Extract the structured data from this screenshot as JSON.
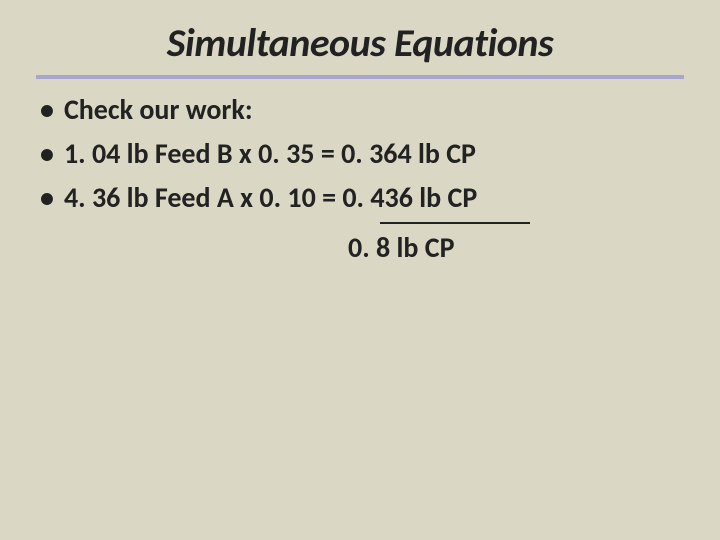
{
  "slide": {
    "title": "Simultaneous Equations",
    "bullets": [
      {
        "text": "Check our work:"
      },
      {
        "text": "1. 04 lb Feed B x 0. 35 = 0. 364 lb CP"
      },
      {
        "text": "4. 36 lb Feed A x 0. 10 = 0. 436 lb CP"
      }
    ],
    "result": "0. 8 lb CP",
    "colors": {
      "background": "#dad7c4",
      "divider": "#a6a6d0",
      "text": "#222222"
    },
    "typography": {
      "title_fontsize": 40,
      "body_fontsize": 28,
      "font_family": "Calibri",
      "title_style": "bold-italic",
      "body_style": "bold"
    }
  }
}
